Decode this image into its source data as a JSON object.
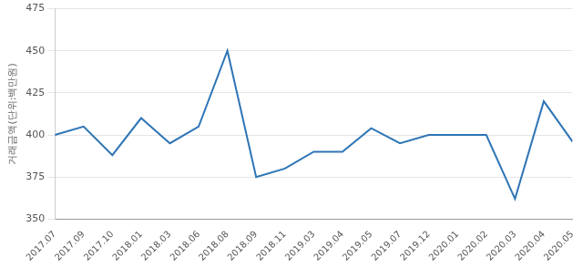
{
  "chart_data": {
    "type": "line",
    "y_label": "거래금액(단위:백만원)",
    "categories": [
      "2017.07",
      "2017.09",
      "2017.10",
      "2018.01",
      "2018.03",
      "2018.06",
      "2018.08",
      "2018.09",
      "2018.11",
      "2019.03",
      "2019.04",
      "2019.05",
      "2019.07",
      "2019.12",
      "2020.01",
      "2020.02",
      "2020.03",
      "2020.04",
      "2020.05"
    ],
    "values": [
      400,
      405,
      388,
      410,
      395,
      405,
      450,
      375,
      380,
      390,
      390,
      404,
      395,
      400,
      400,
      400,
      362,
      420,
      396
    ],
    "color": "#2e75b6",
    "ylim": [
      350,
      475
    ],
    "yticks": [
      350,
      375,
      400,
      425,
      450,
      475
    ],
    "grid": true
  }
}
